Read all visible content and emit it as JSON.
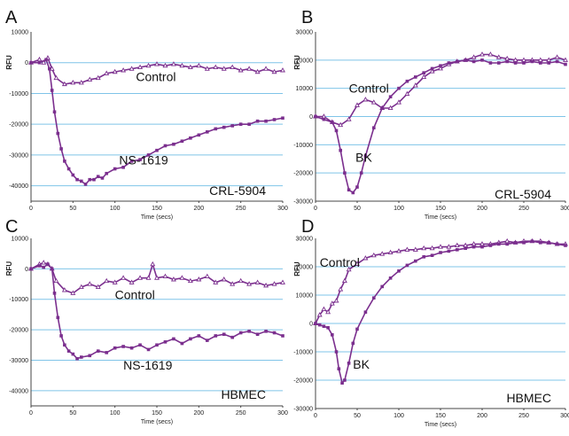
{
  "colors": {
    "series": "#7b2f8e",
    "grid": "#7fc4e8",
    "axis": "#444444"
  },
  "chart_data": [
    {
      "panel": "A",
      "type": "line",
      "cell_label": "CRL-5904",
      "xlabel": "Time (secs)",
      "ylabel": "RFU",
      "xlim": [
        0,
        300
      ],
      "ylim": [
        -45000,
        10000
      ],
      "xticks": [
        0,
        50,
        100,
        150,
        200,
        250,
        300
      ],
      "yticks": [
        10000,
        0,
        -10000,
        -20000,
        -30000,
        -40000
      ],
      "grid": true,
      "series": [
        {
          "name": "Control",
          "marker": "triangle-open",
          "x": [
            0,
            10,
            15,
            20,
            25,
            30,
            40,
            50,
            60,
            70,
            80,
            90,
            100,
            110,
            120,
            130,
            140,
            150,
            160,
            170,
            180,
            190,
            200,
            210,
            220,
            230,
            240,
            250,
            260,
            270,
            280,
            290,
            300
          ],
          "y": [
            0,
            1000,
            0,
            1500,
            -2000,
            -5000,
            -7000,
            -6500,
            -6500,
            -5500,
            -5000,
            -3500,
            -3000,
            -2500,
            -2000,
            -1500,
            -1000,
            -500,
            -1000,
            -500,
            -1000,
            -1500,
            -1000,
            -2000,
            -1500,
            -2000,
            -1500,
            -2500,
            -2000,
            -3000,
            -2000,
            -3000,
            -2500
          ]
        },
        {
          "name": "NS-1619",
          "marker": "square",
          "x": [
            0,
            10,
            18,
            22,
            25,
            28,
            32,
            36,
            40,
            45,
            50,
            55,
            60,
            65,
            70,
            75,
            80,
            85,
            90,
            100,
            110,
            120,
            130,
            140,
            150,
            160,
            170,
            180,
            190,
            200,
            210,
            220,
            230,
            240,
            250,
            260,
            270,
            280,
            290,
            300
          ],
          "y": [
            0,
            0,
            1000,
            -2000,
            -9000,
            -16000,
            -23000,
            -28000,
            -32000,
            -34500,
            -36500,
            -38000,
            -38500,
            -39500,
            -38000,
            -38000,
            -37000,
            -37500,
            -36000,
            -34500,
            -34000,
            -32000,
            -31500,
            -30000,
            -28500,
            -27000,
            -26500,
            -25500,
            -24500,
            -23500,
            -22500,
            -21500,
            -21000,
            -20500,
            -20000,
            -20000,
            -19000,
            -19000,
            -18500,
            -18000
          ]
        }
      ],
      "annotations": [
        {
          "text": "Control",
          "x": 125,
          "y": -6000
        },
        {
          "text": "NS-1619",
          "x": 105,
          "y": -33000
        }
      ]
    },
    {
      "panel": "B",
      "type": "line",
      "cell_label": "CRL-5904",
      "xlabel": "Time (secs)",
      "ylabel": "RFU",
      "xlim": [
        0,
        300
      ],
      "ylim": [
        -30000,
        30000
      ],
      "xticks": [
        0,
        50,
        100,
        150,
        200,
        250,
        300
      ],
      "yticks": [
        30000,
        20000,
        10000,
        0,
        -10000,
        -20000,
        -30000
      ],
      "grid": true,
      "series": [
        {
          "name": "Control",
          "marker": "triangle-open",
          "x": [
            0,
            10,
            20,
            30,
            40,
            50,
            60,
            70,
            80,
            90,
            100,
            110,
            120,
            130,
            140,
            150,
            160,
            170,
            180,
            190,
            200,
            210,
            220,
            230,
            240,
            250,
            260,
            270,
            280,
            290,
            300
          ],
          "y": [
            0,
            0,
            -2000,
            -3000,
            -1000,
            4000,
            6000,
            5000,
            3000,
            3000,
            5000,
            8000,
            11000,
            14000,
            16000,
            17000,
            18500,
            19500,
            20000,
            21000,
            22000,
            22000,
            21000,
            20500,
            20000,
            20000,
            20000,
            20000,
            20000,
            21000,
            20000
          ]
        },
        {
          "name": "BK",
          "marker": "square",
          "x": [
            0,
            10,
            20,
            25,
            30,
            35,
            40,
            45,
            50,
            55,
            60,
            70,
            80,
            90,
            100,
            110,
            120,
            130,
            140,
            150,
            160,
            170,
            180,
            190,
            200,
            210,
            220,
            230,
            240,
            250,
            260,
            270,
            280,
            290,
            300
          ],
          "y": [
            0,
            -1000,
            -2000,
            -5000,
            -12000,
            -20000,
            -26000,
            -27000,
            -25000,
            -20000,
            -14000,
            -4000,
            3000,
            7000,
            10000,
            12500,
            14000,
            15500,
            17000,
            18000,
            19000,
            19500,
            20000,
            19500,
            20000,
            19000,
            19000,
            19500,
            19000,
            19000,
            19500,
            19000,
            19000,
            19500,
            18500
          ]
        }
      ],
      "annotations": [
        {
          "text": "Control",
          "x": 40,
          "y": 8500
        },
        {
          "text": "BK",
          "x": 48,
          "y": -16000
        }
      ]
    },
    {
      "panel": "C",
      "type": "line",
      "cell_label": "HBMEC",
      "xlabel": "Time (secs)",
      "ylabel": "RFU",
      "xlim": [
        0,
        300
      ],
      "ylim": [
        -45000,
        10000
      ],
      "xticks": [
        0,
        50,
        100,
        150,
        200,
        250,
        300
      ],
      "yticks": [
        10000,
        0,
        -10000,
        -20000,
        -30000,
        -40000
      ],
      "grid": true,
      "series": [
        {
          "name": "Control",
          "marker": "triangle-open",
          "x": [
            0,
            10,
            15,
            20,
            25,
            30,
            40,
            50,
            60,
            70,
            80,
            90,
            100,
            110,
            120,
            130,
            140,
            145,
            150,
            160,
            170,
            180,
            190,
            200,
            210,
            220,
            230,
            240,
            250,
            260,
            270,
            280,
            290,
            300
          ],
          "y": [
            0,
            1500,
            2000,
            1500,
            0,
            -4000,
            -7000,
            -8000,
            -6000,
            -5000,
            -6000,
            -4000,
            -4500,
            -3000,
            -4500,
            -3000,
            -3000,
            1500,
            -3000,
            -2500,
            -3500,
            -3000,
            -4000,
            -3500,
            -2500,
            -4500,
            -3500,
            -5000,
            -4000,
            -5000,
            -4500,
            -5500,
            -5000,
            -4500
          ]
        },
        {
          "name": "NS-1619",
          "marker": "square",
          "x": [
            0,
            10,
            15,
            20,
            25,
            28,
            32,
            36,
            40,
            45,
            50,
            55,
            60,
            70,
            80,
            90,
            100,
            110,
            120,
            130,
            140,
            150,
            160,
            170,
            180,
            190,
            200,
            210,
            220,
            230,
            240,
            250,
            260,
            270,
            280,
            290,
            300
          ],
          "y": [
            0,
            1000,
            500,
            1500,
            0,
            -8000,
            -16000,
            -22000,
            -25000,
            -27000,
            -28000,
            -29500,
            -29000,
            -28500,
            -27000,
            -27500,
            -26000,
            -25500,
            -26000,
            -25000,
            -26500,
            -25000,
            -24000,
            -23000,
            -24500,
            -23000,
            -22000,
            -23500,
            -22000,
            -21500,
            -22500,
            -21000,
            -20500,
            -21500,
            -20500,
            -21000,
            -22000
          ]
        }
      ],
      "annotations": [
        {
          "text": "Control",
          "x": 100,
          "y": -10000
        },
        {
          "text": "NS-1619",
          "x": 110,
          "y": -33000
        }
      ]
    },
    {
      "panel": "D",
      "type": "line",
      "cell_label": "HBMEC",
      "xlabel": "Time (secs)",
      "ylabel": "RFU",
      "xlim": [
        0,
        300
      ],
      "ylim": [
        -30000,
        30000
      ],
      "xticks": [
        0,
        50,
        100,
        150,
        200,
        250,
        300
      ],
      "yticks": [
        30000,
        20000,
        10000,
        0,
        -10000,
        -20000,
        -30000
      ],
      "grid": true,
      "series": [
        {
          "name": "Control",
          "marker": "triangle-open",
          "x": [
            0,
            5,
            10,
            15,
            20,
            25,
            30,
            35,
            40,
            50,
            60,
            70,
            80,
            90,
            100,
            110,
            120,
            130,
            140,
            150,
            160,
            170,
            180,
            190,
            200,
            210,
            220,
            230,
            240,
            250,
            260,
            270,
            280,
            290,
            300
          ],
          "y": [
            0,
            3000,
            5000,
            4000,
            7000,
            8000,
            12000,
            15000,
            19000,
            21000,
            23000,
            24000,
            24500,
            25000,
            25500,
            26000,
            26000,
            26500,
            26500,
            27000,
            27000,
            27500,
            27500,
            28000,
            28000,
            28000,
            28500,
            29000,
            28500,
            29000,
            29000,
            29000,
            28500,
            28000,
            28000
          ]
        },
        {
          "name": "BK",
          "marker": "square",
          "x": [
            0,
            5,
            10,
            15,
            20,
            25,
            28,
            32,
            35,
            40,
            45,
            50,
            60,
            70,
            80,
            90,
            100,
            110,
            120,
            130,
            140,
            150,
            160,
            170,
            180,
            190,
            200,
            210,
            220,
            230,
            240,
            250,
            260,
            270,
            280,
            290,
            300
          ],
          "y": [
            0,
            -500,
            -1000,
            -1500,
            -4000,
            -10000,
            -16000,
            -21000,
            -20000,
            -14000,
            -7000,
            -2000,
            4000,
            9000,
            13000,
            16000,
            18500,
            20500,
            22000,
            23500,
            24000,
            25000,
            25500,
            26000,
            26500,
            27000,
            27000,
            27500,
            28000,
            28000,
            28500,
            28500,
            29000,
            28500,
            28500,
            28000,
            27500
          ]
        }
      ],
      "annotations": [
        {
          "text": "Control",
          "x": 5,
          "y": 20000
        },
        {
          "text": "BK",
          "x": 45,
          "y": -16000
        }
      ]
    }
  ]
}
